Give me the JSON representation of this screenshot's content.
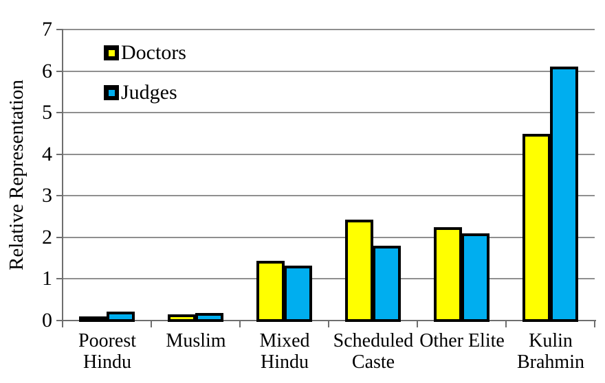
{
  "chart_data": {
    "type": "bar",
    "title": "",
    "ylabel": "Relative Representation",
    "xlabel": "",
    "ylim": [
      0,
      7
    ],
    "yticks": [
      0,
      1,
      2,
      3,
      4,
      5,
      6,
      7
    ],
    "grid": true,
    "legend_position": "top-left-inside",
    "categories": [
      "Poorest Hindu",
      "Muslim",
      "Mixed Hindu",
      "Scheduled Caste",
      "Other Elite",
      "Kulin Brahmin"
    ],
    "category_lines": [
      [
        "Poorest",
        "Hindu"
      ],
      [
        "Muslim"
      ],
      [
        "Mixed",
        "Hindu"
      ],
      [
        "Scheduled",
        "Caste"
      ],
      [
        "Other Elite"
      ],
      [
        "Kulin",
        "Brahmin"
      ]
    ],
    "series": [
      {
        "name": "Doctors",
        "color": "#FFFF00",
        "values": [
          0.07,
          0.12,
          1.4,
          2.39,
          2.22,
          4.46
        ]
      },
      {
        "name": "Judges",
        "color": "#00AEEF",
        "values": [
          0.18,
          0.15,
          1.29,
          1.76,
          2.07,
          6.08
        ]
      }
    ],
    "colors": {
      "bar_border": "#000000",
      "gridline": "#8f8f8f",
      "axis": "#6e6e6e",
      "text": "#000000",
      "background": "#FFFFFF"
    }
  }
}
